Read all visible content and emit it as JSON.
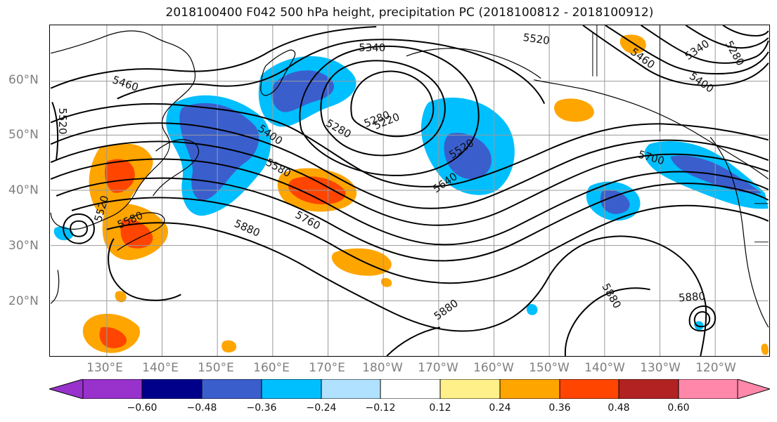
{
  "title": "2018100400 F042 500 hPa height, precipitation PC (2018100812 - 2018100912)",
  "axes": {
    "lat_labels": [
      "60°N",
      "50°N",
      "40°N",
      "30°N",
      "20°N"
    ],
    "lon_labels": [
      "130°E",
      "140°E",
      "150°E",
      "160°E",
      "170°E",
      "180°W",
      "170°W",
      "160°W",
      "150°W",
      "140°W",
      "130°W",
      "120°W"
    ]
  },
  "contour_labels": [
    "5340",
    "5520",
    "5280",
    "5460",
    "5340",
    "5400",
    "5280",
    "5460",
    "5520",
    "5280",
    "5220",
    "5400",
    "5520",
    "5580",
    "5640",
    "5700",
    "5880",
    "5760",
    "5880",
    "5880",
    "5880",
    "5520",
    "5580"
  ],
  "colorbar": {
    "labels": [
      "−0.60",
      "−0.48",
      "−0.36",
      "−0.24",
      "−0.12",
      "0.12",
      "0.24",
      "0.36",
      "0.48",
      "0.60"
    ],
    "colors": [
      "#9932cc",
      "#00008b",
      "#3a5fcd",
      "#00bfff",
      "#b0e2ff",
      "#ffffff",
      "#fff08a",
      "#ffa500",
      "#ff4500",
      "#b22222",
      "#ff88aa"
    ]
  },
  "map_colors": {
    "negative_light": "#00bfff",
    "negative_mid": "#3a5fcd",
    "positive_light": "#ffa500",
    "positive_mid": "#ff4500",
    "positive_pale": "#fff08a",
    "grid": "#9a9a9a",
    "contour": "#000000"
  }
}
